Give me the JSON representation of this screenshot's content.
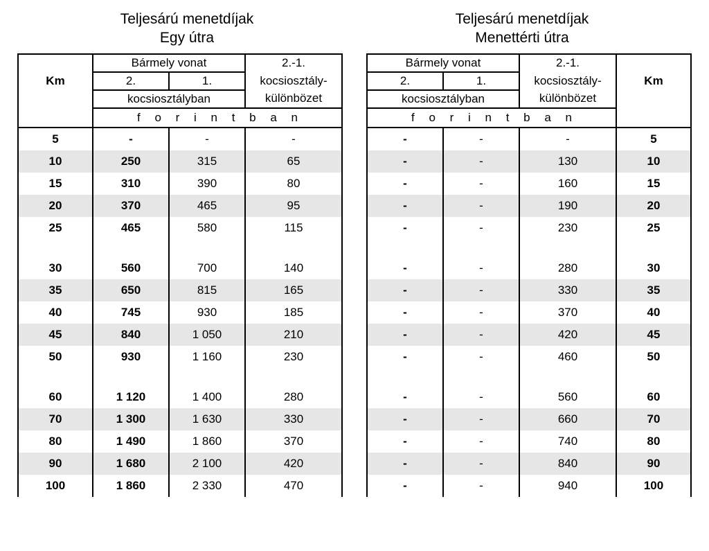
{
  "titles": {
    "left_line1": "Teljesárú menetdíjak",
    "left_line2": "Egy útra",
    "right_line1": "Teljesárú menetdíjak",
    "right_line2": "Menettérti  útra"
  },
  "headers": {
    "km": "Km",
    "any_train": "Bármely vonat",
    "class2": "2.",
    "class1": "1.",
    "in_class": "kocsiosztályban",
    "diff_top": "2.-1.",
    "diff_mid": "kocsiosztály-",
    "diff_bot": "különbözet",
    "forint": "f o r i n t b a n"
  },
  "colors": {
    "shade": "#e6e6e6",
    "border": "#000000",
    "text": "#000000",
    "bg": "#ffffff"
  },
  "rows": [
    {
      "km": "5",
      "l2": "-",
      "l1": "-",
      "ld": "-",
      "r2": "-",
      "r1": "-",
      "rd": "-",
      "shade": false
    },
    {
      "km": "10",
      "l2": "250",
      "l1": "315",
      "ld": "65",
      "r2": "-",
      "r1": "-",
      "rd": "130",
      "shade": true
    },
    {
      "km": "15",
      "l2": "310",
      "l1": "390",
      "ld": "80",
      "r2": "-",
      "r1": "-",
      "rd": "160",
      "shade": false
    },
    {
      "km": "20",
      "l2": "370",
      "l1": "465",
      "ld": "95",
      "r2": "-",
      "r1": "-",
      "rd": "190",
      "shade": true
    },
    {
      "km": "25",
      "l2": "465",
      "l1": "580",
      "ld": "115",
      "r2": "-",
      "r1": "-",
      "rd": "230",
      "shade": false
    },
    {
      "spacer": true
    },
    {
      "km": "30",
      "l2": "560",
      "l1": "700",
      "ld": "140",
      "r2": "-",
      "r1": "-",
      "rd": "280",
      "shade": false
    },
    {
      "km": "35",
      "l2": "650",
      "l1": "815",
      "ld": "165",
      "r2": "-",
      "r1": "-",
      "rd": "330",
      "shade": true
    },
    {
      "km": "40",
      "l2": "745",
      "l1": "930",
      "ld": "185",
      "r2": "-",
      "r1": "-",
      "rd": "370",
      "shade": false
    },
    {
      "km": "45",
      "l2": "840",
      "l1": "1 050",
      "ld": "210",
      "r2": "-",
      "r1": "-",
      "rd": "420",
      "shade": true
    },
    {
      "km": "50",
      "l2": "930",
      "l1": "1 160",
      "ld": "230",
      "r2": "-",
      "r1": "-",
      "rd": "460",
      "shade": false
    },
    {
      "spacer": true
    },
    {
      "km": "60",
      "l2": "1 120",
      "l1": "1 400",
      "ld": "280",
      "r2": "-",
      "r1": "-",
      "rd": "560",
      "shade": false
    },
    {
      "km": "70",
      "l2": "1 300",
      "l1": "1 630",
      "ld": "330",
      "r2": "-",
      "r1": "-",
      "rd": "660",
      "shade": true
    },
    {
      "km": "80",
      "l2": "1 490",
      "l1": "1 860",
      "ld": "370",
      "r2": "-",
      "r1": "-",
      "rd": "740",
      "shade": false
    },
    {
      "km": "90",
      "l2": "1 680",
      "l1": "2 100",
      "ld": "420",
      "r2": "-",
      "r1": "-",
      "rd": "840",
      "shade": true
    },
    {
      "km": "100",
      "l2": "1 860",
      "l1": "2 330",
      "ld": "470",
      "r2": "-",
      "r1": "-",
      "rd": "940",
      "shade": false
    }
  ]
}
